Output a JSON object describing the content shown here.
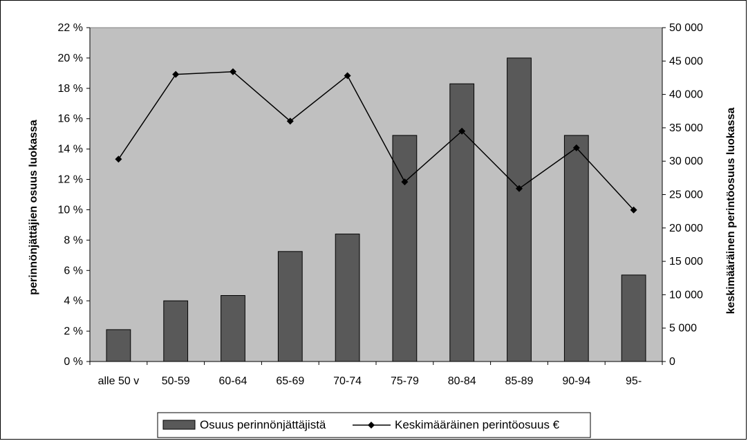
{
  "chart_data": {
    "type": "bar",
    "categories": [
      "alle 50 v",
      "50-59",
      "60-64",
      "65-69",
      "70-74",
      "75-79",
      "80-84",
      "85-89",
      "90-94",
      "95-"
    ],
    "series": [
      {
        "name": "Osuus perinnönjättäjistä",
        "type": "bar",
        "axis": "left",
        "unit": "%",
        "values": [
          2.1,
          4.0,
          4.35,
          7.25,
          8.4,
          14.9,
          18.3,
          20.0,
          14.9,
          5.7
        ]
      },
      {
        "name": "Keskimääräinen perintöosuus €",
        "type": "line",
        "axis": "right",
        "marker": "diamond",
        "values": [
          30300,
          43000,
          43400,
          36000,
          42800,
          26900,
          34500,
          25900,
          32000,
          22700
        ]
      }
    ],
    "ylabel_left": "perinnönjättäjien osuus luokassa",
    "ylabel_right": "keskimääräinen perintöosuus luokassa",
    "ylim_left": [
      0,
      22
    ],
    "ylim_right": [
      0,
      50000
    ],
    "yticks_left": [
      "0 %",
      "2 %",
      "4 %",
      "6 %",
      "8 %",
      "10 %",
      "12 %",
      "14 %",
      "16 %",
      "18 %",
      "20 %",
      "22 %"
    ],
    "yticks_right": [
      "0",
      "5 000",
      "10 000",
      "15 000",
      "20 000",
      "25 000",
      "30 000",
      "35 000",
      "40 000",
      "45 000",
      "50 000"
    ],
    "legend_position": "bottom",
    "grid": false,
    "colors": {
      "plot_background": "#c0c0c0",
      "bar_fill": "#595959",
      "line": "#000000"
    }
  }
}
